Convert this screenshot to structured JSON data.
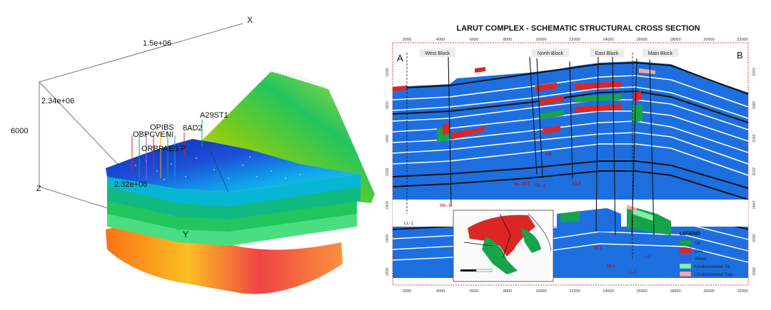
{
  "left_view": {
    "axis_x_label": "X",
    "axis_y_label": "Y",
    "axis_z_label": "Z",
    "tick_x": "1.5e+06",
    "tick_y_top": "2.34e+06",
    "tick_y_bottom": "2.32e+06",
    "tick_z": "6000",
    "well_a29": "A29ST1",
    "well_8ad2": "8AD2",
    "well_cluster_upper": "OBPCVENI",
    "well_cluster_mid": "OPIBS",
    "well_cluster_lower": "ORBPAES P"
  },
  "cross_section": {
    "title": "LARUT COMPLEX - SCHEMATIC STRUCTURAL CROSS SECTION",
    "end_left": "A",
    "end_right": "B",
    "x_ticks": [
      "2000",
      "4000",
      "6000",
      "8000",
      "10000",
      "12000",
      "14000",
      "16000",
      "18000",
      "20000",
      "22000"
    ],
    "depth_ticks_left": [
      "-1600",
      "-1800",
      "-2000",
      "-2200",
      "-2400",
      "-2600",
      "-2800"
    ],
    "depth_ticks_right": [
      "-1600",
      "-1800",
      "-2000",
      "-2200",
      "-2400",
      "-2600",
      "-2800"
    ],
    "blocks": [
      "West Block",
      "North Block",
      "East Block",
      "Main Block"
    ],
    "wells": [
      "LL-1",
      "WL-1",
      "NL-1ST",
      "NL-1",
      "A8",
      "EL3",
      "EL1",
      "EL2",
      "L-1",
      "L2"
    ],
    "legend_title": "LEGEND",
    "legend": [
      {
        "label": "Oil",
        "color": "#16a34a"
      },
      {
        "label": "Gas",
        "color": "#dc2626"
      },
      {
        "label": "Water",
        "color": "#2563eb"
      },
      {
        "label": "Undiscovered Oil",
        "color": "#86efac"
      },
      {
        "label": "Undiscovered Gas",
        "color": "#fca5a5"
      }
    ]
  }
}
